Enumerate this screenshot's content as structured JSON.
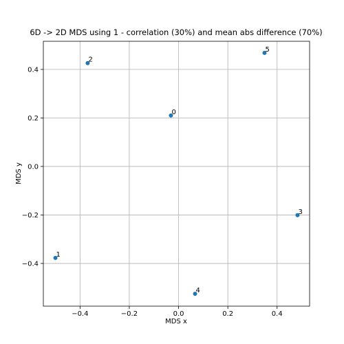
{
  "chart_data": {
    "type": "scatter",
    "title": "6D -> 2D MDS using 1 - correlation (30%) and mean abs difference (70%)",
    "x_label": "MDS x",
    "y_label": "MDS y",
    "x": [
      -0.031,
      -0.5,
      -0.369,
      0.483,
      0.067,
      0.349
    ],
    "values": [
      0.21,
      -0.377,
      0.426,
      -0.201,
      -0.525,
      0.468
    ],
    "point_labels": [
      "0",
      "1",
      "2",
      "3",
      "4",
      "5"
    ],
    "color": "#1f77b4",
    "xlim": [
      -0.549,
      0.532
    ],
    "ylim": [
      -0.576,
      0.516
    ],
    "xticks": [
      {
        "value": -0.4,
        "label": "−0.4"
      },
      {
        "value": -0.2,
        "label": "−0.2"
      },
      {
        "value": 0,
        "label": "0.0"
      },
      {
        "value": 0.2,
        "label": "0.2"
      },
      {
        "value": 0.4,
        "label": "0.4"
      }
    ],
    "yticks": [
      {
        "value": -0.4,
        "label": "−0.4"
      },
      {
        "value": -0.2,
        "label": "−0.2"
      },
      {
        "value": 0,
        "label": "0.0"
      },
      {
        "value": 0.2,
        "label": "0.2"
      },
      {
        "value": 0.4,
        "label": "0.4"
      }
    ],
    "grid": true
  }
}
